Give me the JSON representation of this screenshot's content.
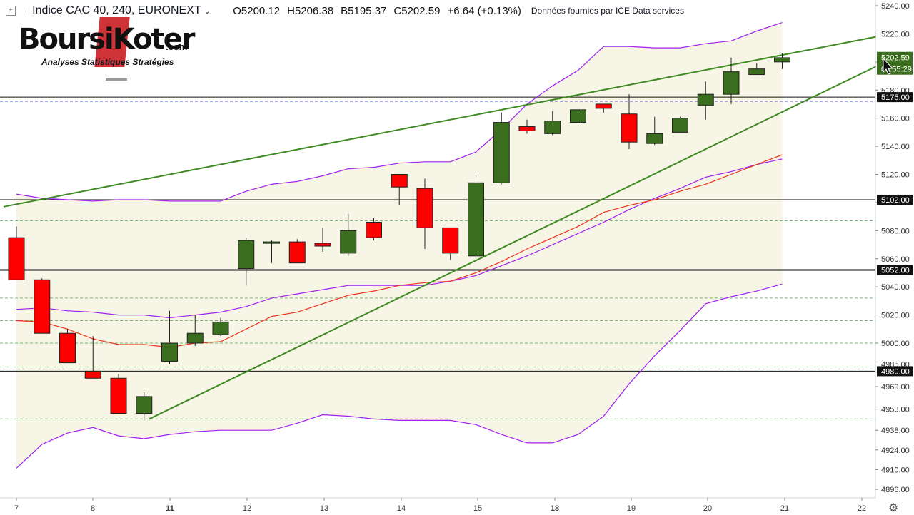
{
  "header": {
    "symbol_title": "Indice CAC 40, 240, EURONEXT",
    "open": "O5200.12",
    "high": "H5206.38",
    "low": "B5195.37",
    "close": "C5202.59",
    "change": "+6.64 (+0.13%)",
    "source": "Données fournies par ICE Data services"
  },
  "logo": {
    "name": "BoursiKoter",
    "domain": ".com",
    "tagline": "Analyses Statistiques Stratégies"
  },
  "colors": {
    "up": "#3a6e1e",
    "down": "#ff0000",
    "trendline": "#3f8a23",
    "bollinger": "#a020f0",
    "ma": "#e8341c",
    "band_fill": "#f7f5e6"
  },
  "chart_data": {
    "type": "candlestick",
    "title": "Indice CAC 40, 240, EURONEXT",
    "y_range": [
      4896,
      5244
    ],
    "y_ticks": [
      5240.0,
      5220.0,
      5200.0,
      5180.0,
      5160.0,
      5140.0,
      5120.0,
      5100.0,
      5080.0,
      5060.0,
      5040.0,
      5020.0,
      5000.0,
      4985.0,
      4969.0,
      4953.0,
      4938.0,
      4924.0,
      4910.0,
      4896.0
    ],
    "x_labels": [
      "7",
      "8",
      "11",
      "12",
      "13",
      "14",
      "15",
      "18",
      "19",
      "20",
      "21",
      "22"
    ],
    "bar_slots": 34,
    "candles": [
      {
        "o": 5075,
        "h": 5083,
        "l": 5045,
        "c": 5045
      },
      {
        "o": 5045,
        "h": 5046,
        "l": 5007,
        "c": 5007
      },
      {
        "o": 5007,
        "h": 5010,
        "l": 4986,
        "c": 4986
      },
      {
        "o": 4980,
        "h": 5005,
        "l": 4975,
        "c": 4975
      },
      {
        "o": 4975,
        "h": 4978,
        "l": 4950,
        "c": 4950
      },
      {
        "o": 4950,
        "h": 4965,
        "l": 4945,
        "c": 4962
      },
      {
        "o": 4987,
        "h": 5023,
        "l": 4985,
        "c": 5000
      },
      {
        "o": 5000,
        "h": 5020,
        "l": 4998,
        "c": 5007
      },
      {
        "o": 5006,
        "h": 5018,
        "l": 5005,
        "c": 5015
      },
      {
        "o": 5053,
        "h": 5075,
        "l": 5041,
        "c": 5073
      },
      {
        "o": 5072,
        "h": 5073,
        "l": 5057,
        "c": 5072
      },
      {
        "o": 5072,
        "h": 5074,
        "l": 5057,
        "c": 5057
      },
      {
        "o": 5071,
        "h": 5082,
        "l": 5065,
        "c": 5069
      },
      {
        "o": 5064,
        "h": 5092,
        "l": 5062,
        "c": 5080
      },
      {
        "o": 5086,
        "h": 5089,
        "l": 5073,
        "c": 5075
      },
      {
        "o": 5120,
        "h": 5120,
        "l": 5098,
        "c": 5111
      },
      {
        "o": 5110,
        "h": 5117,
        "l": 5067,
        "c": 5082
      },
      {
        "o": 5082,
        "h": 5082,
        "l": 5059,
        "c": 5064
      },
      {
        "o": 5062,
        "h": 5120,
        "l": 5060,
        "c": 5114
      },
      {
        "o": 5114,
        "h": 5164,
        "l": 5113,
        "c": 5157
      },
      {
        "o": 5154,
        "h": 5159,
        "l": 5149,
        "c": 5151
      },
      {
        "o": 5149,
        "h": 5165,
        "l": 5148,
        "c": 5158
      },
      {
        "o": 5157,
        "h": 5167,
        "l": 5156,
        "c": 5166
      },
      {
        "o": 5170,
        "h": 5170,
        "l": 5164,
        "c": 5167
      },
      {
        "o": 5163,
        "h": 5177,
        "l": 5138,
        "c": 5143
      },
      {
        "o": 5142,
        "h": 5161,
        "l": 5141,
        "c": 5149
      },
      {
        "o": 5150,
        "h": 5161,
        "l": 5150,
        "c": 5160
      },
      {
        "o": 5169,
        "h": 5186,
        "l": 5159,
        "c": 5177
      },
      {
        "o": 5177,
        "h": 5203,
        "l": 5170,
        "c": 5193
      },
      {
        "o": 5191,
        "h": 5199,
        "l": 5191,
        "c": 5195
      },
      {
        "o": 5200,
        "h": 5206,
        "l": 5195,
        "c": 5203
      }
    ],
    "bb_upper": [
      5106,
      5103,
      5102,
      5101,
      5102,
      5102,
      5101,
      5101,
      5101,
      5108,
      5113,
      5115,
      5119,
      5124,
      5125,
      5128,
      5129,
      5129,
      5136,
      5152,
      5170,
      5183,
      5194,
      5211,
      5211,
      5210,
      5210,
      5213,
      5215,
      5222,
      5228
    ],
    "bb_lower": [
      4911,
      4928,
      4936,
      4940,
      4934,
      4932,
      4935,
      4937,
      4938,
      4938,
      4938,
      4943,
      4949,
      4948,
      4946,
      4945,
      4945,
      4945,
      4942,
      4935,
      4929,
      4929,
      4935,
      4948,
      4971,
      4991,
      5009,
      5028,
      5033,
      5037,
      5042
    ],
    "bb_middle": [
      5024,
      5025,
      5023,
      5022,
      5020,
      5020,
      5018,
      5020,
      5022,
      5026,
      5032,
      5035,
      5038,
      5041,
      5041,
      5041,
      5041,
      5044,
      5048,
      5055,
      5062,
      5070,
      5078,
      5086,
      5095,
      5103,
      5110,
      5118,
      5122,
      5127,
      5131
    ],
    "ma": [
      5016,
      5015,
      5010,
      5003,
      4999,
      4999,
      4997,
      5000,
      5001,
      5010,
      5019,
      5022,
      5028,
      5034,
      5037,
      5041,
      5043,
      5044,
      5050,
      5058,
      5067,
      5075,
      5083,
      5093,
      5098,
      5102,
      5108,
      5113,
      5120,
      5127,
      5134
    ],
    "horizontal_levels": [
      {
        "value": 5175.0,
        "label": "5175.00"
      },
      {
        "value": 5102.0,
        "label": "5102.00"
      },
      {
        "value": 5052.0,
        "label": "5052.00"
      },
      {
        "value": 4980.0,
        "label": "4980.00"
      }
    ],
    "dashed_levels": [
      5172,
      5087,
      5032,
      5016,
      5000,
      4983,
      4946
    ],
    "last_price": {
      "value": 5202.59,
      "label": "5202.59",
      "countdown": "03:55:29"
    },
    "trendlines": [
      {
        "x1": -0.5,
        "y1": 5097,
        "x2": 33.7,
        "y2": 5218
      },
      {
        "x1": 5.2,
        "y1": 4946,
        "x2": 33.7,
        "y2": 5197
      }
    ]
  },
  "settings_icon": "gear-icon"
}
